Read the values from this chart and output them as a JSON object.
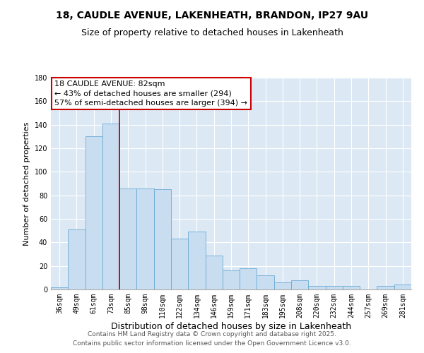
{
  "title": "18, CAUDLE AVENUE, LAKENHEATH, BRANDON, IP27 9AU",
  "subtitle": "Size of property relative to detached houses in Lakenheath",
  "xlabel": "Distribution of detached houses by size in Lakenheath",
  "ylabel": "Number of detached properties",
  "categories": [
    "36sqm",
    "49sqm",
    "61sqm",
    "73sqm",
    "85sqm",
    "98sqm",
    "110sqm",
    "122sqm",
    "134sqm",
    "146sqm",
    "159sqm",
    "171sqm",
    "183sqm",
    "195sqm",
    "208sqm",
    "220sqm",
    "232sqm",
    "244sqm",
    "257sqm",
    "269sqm",
    "281sqm"
  ],
  "values": [
    2,
    51,
    130,
    141,
    86,
    86,
    85,
    43,
    49,
    29,
    16,
    18,
    12,
    6,
    8,
    3,
    3,
    3,
    0,
    3,
    4
  ],
  "bar_color": "#c9ddf0",
  "bar_edge_color": "#6aaad4",
  "red_line_index": 4,
  "red_line_color": "#aa0000",
  "annotation_line1": "18 CAUDLE AVENUE: 82sqm",
  "annotation_line2": "← 43% of detached houses are smaller (294)",
  "annotation_line3": "57% of semi-detached houses are larger (394) →",
  "annotation_box_facecolor": "#ffffff",
  "annotation_box_edgecolor": "#cc0000",
  "ylim": [
    0,
    180
  ],
  "yticks": [
    0,
    20,
    40,
    60,
    80,
    100,
    120,
    140,
    160,
    180
  ],
  "background_color": "#dce9f5",
  "grid_color": "#ffffff",
  "footer_line1": "Contains HM Land Registry data © Crown copyright and database right 2025.",
  "footer_line2": "Contains public sector information licensed under the Open Government Licence v3.0.",
  "title_fontsize": 10,
  "subtitle_fontsize": 9,
  "xlabel_fontsize": 9,
  "ylabel_fontsize": 8,
  "tick_fontsize": 7,
  "annotation_fontsize": 8,
  "footer_fontsize": 6.5
}
